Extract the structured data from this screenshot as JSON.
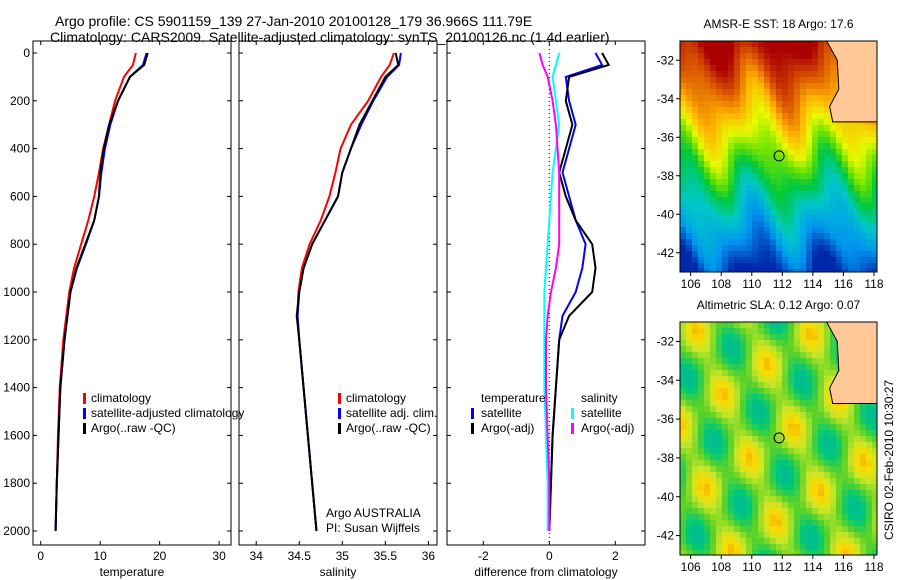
{
  "title_line1": "Argo profile: CS 5901159_139 27-Jan-2010 20100128_179 36.966S 111.79E",
  "title_line2": "Climatology: CARS2009. Satellite-adjusted climatology: synTS_20100126.nc (1.4d earlier)",
  "side_label": "CSIRO 02-Feb-2010 10:30:27",
  "colors": {
    "climatology": "#ff0000",
    "satellite": "#0000ff",
    "argo": "#000000",
    "sal_satellite": "#00ffff",
    "sal_argo": "#ff00ff"
  },
  "chart_data": [
    {
      "type": "line",
      "xlabel": "temperature",
      "ylabel": "",
      "xlim": [
        -1.3,
        32
      ],
      "ylim": [
        2050,
        0
      ],
      "xticks": [
        "0",
        "10",
        "20",
        "30"
      ],
      "xtick_values": [
        0,
        10,
        20,
        30
      ],
      "yticks": [
        "0",
        "200",
        "400",
        "600",
        "800",
        "1000",
        "1200",
        "1400",
        "1600",
        "1800",
        "2000"
      ],
      "depth": [
        0,
        50,
        100,
        200,
        300,
        400,
        500,
        600,
        700,
        800,
        900,
        1000,
        1200,
        1400,
        1600,
        1800,
        2000
      ],
      "series": [
        {
          "name": "climatology",
          "color": "#ff0000",
          "values": [
            16,
            15.5,
            14,
            12.5,
            11.5,
            10.5,
            9.8,
            9,
            8,
            6.8,
            5.6,
            4.8,
            3.8,
            3.2,
            2.9,
            2.7,
            2.5
          ]
        },
        {
          "name": "satellite-adjusted climatology",
          "color": "#0000ff",
          "values": [
            17.8,
            17.2,
            15,
            13,
            11.7,
            10.8,
            10.2,
            9.8,
            9,
            7.6,
            6.1,
            5,
            4,
            3.3,
            3,
            2.7,
            2.5
          ]
        },
        {
          "name": "Argo(..raw -QC)",
          "color": "#000000",
          "values": [
            18,
            17.4,
            15,
            13,
            11.5,
            10.6,
            10,
            9.8,
            9,
            7.5,
            6,
            5,
            4,
            3.3,
            3,
            2.7,
            2.5
          ]
        }
      ],
      "legend": [
        "climatology",
        "satellite-adjusted climatology",
        "Argo(..raw -QC)"
      ]
    },
    {
      "type": "line",
      "xlabel": "salinity",
      "xlim": [
        33.8,
        36.1
      ],
      "ylim": [
        2050,
        0
      ],
      "xticks": [
        "34",
        "34.5",
        "35",
        "35.5",
        "36"
      ],
      "xtick_values": [
        34,
        34.5,
        35,
        35.5,
        36
      ],
      "depth": [
        0,
        50,
        100,
        200,
        300,
        400,
        500,
        600,
        700,
        800,
        900,
        1000,
        1100,
        1200,
        1400,
        1600,
        1800,
        2000
      ],
      "series": [
        {
          "name": "climatology",
          "color": "#ff0000",
          "values": [
            35.6,
            35.55,
            35.45,
            35.3,
            35.1,
            34.98,
            34.92,
            34.85,
            34.75,
            34.62,
            34.53,
            34.49,
            34.48,
            34.5,
            34.55,
            34.6,
            34.65,
            34.7
          ]
        },
        {
          "name": "satellite adj. clim.",
          "color": "#0000ff",
          "values": [
            35.68,
            35.66,
            35.52,
            35.36,
            35.22,
            35.1,
            35.0,
            34.95,
            34.8,
            34.65,
            34.55,
            34.5,
            34.48,
            34.5,
            34.55,
            34.6,
            34.65,
            34.7
          ]
        },
        {
          "name": "Argo(..raw -QC)",
          "color": "#000000",
          "values": [
            35.62,
            35.65,
            35.5,
            35.35,
            35.2,
            35.1,
            35.0,
            34.95,
            34.8,
            34.65,
            34.55,
            34.5,
            34.47,
            34.5,
            34.55,
            34.6,
            34.65,
            34.7
          ]
        }
      ],
      "legend": [
        "climatology",
        "satellite adj. clim.",
        "Argo(..raw -QC)"
      ],
      "annotation": [
        "Argo AUSTRALIA",
        "PI: Susan Wijffels"
      ]
    },
    {
      "type": "line",
      "xlabel": "difference from climatology",
      "xlim": [
        -3.1,
        2.9
      ],
      "ylim": [
        2050,
        0
      ],
      "xticks": [
        "-2",
        "0",
        "2"
      ],
      "xtick_values": [
        -2,
        0,
        2
      ],
      "depth": [
        0,
        50,
        100,
        200,
        300,
        400,
        500,
        600,
        700,
        800,
        900,
        1000,
        1100,
        1200,
        1400,
        1600,
        1800,
        2000
      ],
      "series": [
        {
          "name": "temperature satellite",
          "color": "#0000ff",
          "values": [
            1.4,
            1.6,
            0.5,
            0.6,
            0.8,
            0.6,
            0.4,
            0.6,
            0.8,
            1.1,
            1.0,
            0.8,
            0.4,
            0.3,
            0.2,
            0.1,
            0.05,
            0
          ]
        },
        {
          "name": "temperature Argo(-adj)",
          "color": "#000000",
          "values": [
            1.6,
            1.8,
            0.6,
            0.5,
            0.7,
            0.5,
            0.3,
            0.5,
            0.8,
            1.3,
            1.4,
            1.3,
            0.6,
            0.3,
            0.2,
            0.1,
            0.05,
            0
          ]
        },
        {
          "name": "salinity satellite",
          "color": "#00ffff",
          "values": [
            0.3,
            0.2,
            0.1,
            0.2,
            0.3,
            0.2,
            0.1,
            0.05,
            0.0,
            -0.05,
            -0.1,
            -0.15,
            -0.15,
            -0.15,
            -0.15,
            -0.1,
            -0.05,
            -0.05
          ]
        },
        {
          "name": "salinity Argo(-adj)",
          "color": "#ff00ff",
          "values": [
            -0.3,
            -0.2,
            -0.05,
            0.1,
            0.2,
            0.25,
            0.3,
            0.3,
            0.3,
            0.3,
            0.2,
            0.05,
            -0.05,
            -0.1,
            -0.1,
            -0.05,
            0,
            0
          ]
        }
      ],
      "legend_headers": [
        "temperature",
        "salinity"
      ],
      "legend": [
        "satellite",
        "Argo(-adj)",
        "satellite",
        "Argo(-adj)"
      ]
    },
    {
      "type": "heatmap",
      "title": "AMSR-E SST: 18 Argo: 17.6",
      "xlim": [
        105.3,
        118.2
      ],
      "ylim": [
        -43,
        -31
      ],
      "xticks": [
        "106",
        "108",
        "110",
        "112",
        "114",
        "116",
        "118"
      ],
      "yticks": [
        "-32",
        "-34",
        "-36",
        "-38",
        "-40",
        "-42"
      ],
      "marker": [
        111.79,
        -36.97
      ]
    },
    {
      "type": "heatmap",
      "title": "Altimetric SLA: 0.12 Argo: 0.07",
      "xlim": [
        105.3,
        118.2
      ],
      "ylim": [
        -43,
        -31
      ],
      "xticks": [
        "106",
        "108",
        "110",
        "112",
        "114",
        "116",
        "118"
      ],
      "yticks": [
        "-32",
        "-34",
        "-36",
        "-38",
        "-40",
        "-42"
      ],
      "marker": [
        111.79,
        -36.97
      ]
    }
  ]
}
